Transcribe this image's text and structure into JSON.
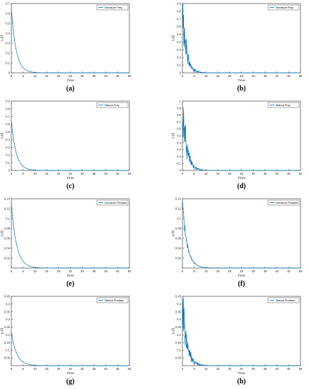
{
  "chart_data": [
    {
      "type": "line",
      "caption": "(a)",
      "xlabel": "Time",
      "ylabel": "x₁(t)",
      "xlim": [
        0,
        50
      ],
      "ylim": [
        0,
        0.7
      ],
      "xticks": [
        0,
        5,
        10,
        15,
        20,
        25,
        30,
        35,
        40,
        45,
        50
      ],
      "yticks": [
        0,
        0.1,
        0.2,
        0.3,
        0.4,
        0.5,
        0.6,
        0.7
      ],
      "ytick_labels": [
        "0",
        "0.1",
        "0.2",
        "0.3",
        "0.4",
        "0.5",
        "0.6",
        "0.7"
      ],
      "series": [
        {
          "name": "Immature Prey",
          "color": "#0072BD",
          "style": "decay",
          "y0": 0.65,
          "rate": 0.5
        }
      ]
    },
    {
      "type": "line",
      "caption": "(b)",
      "xlabel": "Time",
      "ylabel": "x₁(t)",
      "xlim": [
        0,
        50
      ],
      "ylim": [
        0,
        0.9
      ],
      "xticks": [
        0,
        5,
        10,
        15,
        20,
        25,
        30,
        35,
        40,
        45,
        50
      ],
      "yticks": [
        0,
        0.1,
        0.2,
        0.3,
        0.4,
        0.5,
        0.6,
        0.7,
        0.8,
        0.9
      ],
      "ytick_labels": [
        "0",
        "0.1",
        "0.2",
        "0.3",
        "0.4",
        "0.5",
        "0.6",
        "0.7",
        "0.8",
        "0.9"
      ],
      "series": [
        {
          "name": "Immature Prey",
          "color": "#0072BD",
          "style": "noisy",
          "y0": 0.8,
          "rate": 0.6
        }
      ]
    },
    {
      "type": "line",
      "caption": "(c)",
      "xlabel": "Time",
      "ylabel": "x₂(t)",
      "xlim": [
        0,
        50
      ],
      "ylim": [
        0,
        0.9
      ],
      "xticks": [
        0,
        5,
        10,
        15,
        20,
        25,
        30,
        35,
        40,
        45,
        50
      ],
      "yticks": [
        0,
        0.1,
        0.2,
        0.3,
        0.4,
        0.5,
        0.6,
        0.7,
        0.8,
        0.9
      ],
      "ytick_labels": [
        "0",
        "0.1",
        "0.2",
        "0.3",
        "0.4",
        "0.5",
        "0.6",
        "0.7",
        "0.8",
        "0.9"
      ],
      "series": [
        {
          "name": "Mature Prey",
          "color": "#0072BD",
          "style": "decay",
          "y0": 0.65,
          "rate": 0.5
        }
      ]
    },
    {
      "type": "line",
      "caption": "(d)",
      "xlabel": "Time",
      "ylabel": "x₂(t)",
      "xlim": [
        0,
        50
      ],
      "ylim": [
        0,
        1
      ],
      "xticks": [
        0,
        5,
        10,
        15,
        20,
        25,
        30,
        35,
        40,
        45,
        50
      ],
      "yticks": [
        0,
        0.1,
        0.2,
        0.3,
        0.4,
        0.5,
        0.6,
        0.7,
        0.8,
        0.9,
        1
      ],
      "ytick_labels": [
        "0",
        "0.1",
        "0.2",
        "0.3",
        "0.4",
        "0.5",
        "0.6",
        "0.7",
        "0.8",
        "0.9",
        "1"
      ],
      "series": [
        {
          "name": "Mature Prey",
          "color": "#0072BD",
          "style": "noisy",
          "y0": 0.85,
          "rate": 0.55
        }
      ]
    },
    {
      "type": "line",
      "caption": "(e)",
      "xlabel": "Time",
      "ylabel": "y₁(t)",
      "xlim": [
        0,
        50
      ],
      "ylim": [
        0,
        0.14
      ],
      "xticks": [
        0,
        5,
        10,
        15,
        20,
        25,
        30,
        35,
        40,
        45,
        50
      ],
      "yticks": [
        0.02,
        0.04,
        0.06,
        0.08,
        0.1,
        0.12,
        0.14
      ],
      "ytick_labels": [
        "0.02",
        "0.04",
        "0.06",
        "0.08",
        "0.1",
        "0.12",
        "0.14"
      ],
      "series": [
        {
          "name": "Immature Predator",
          "color": "#0072BD",
          "style": "decay",
          "y0": 0.13,
          "rate": 0.45
        }
      ]
    },
    {
      "type": "line",
      "caption": "(f)",
      "xlabel": "Time",
      "ylabel": "y₁(t)",
      "xlim": [
        0,
        50
      ],
      "ylim": [
        0,
        0.14
      ],
      "xticks": [
        0,
        5,
        10,
        15,
        20,
        25,
        30,
        35,
        40,
        45,
        50
      ],
      "yticks": [
        0.02,
        0.04,
        0.06,
        0.08,
        0.1,
        0.12,
        0.14
      ],
      "ytick_labels": [
        "0.02",
        "0.04",
        "0.06",
        "0.08",
        "0.1",
        "0.12",
        "0.14"
      ],
      "series": [
        {
          "name": "Immature Predator",
          "color": "#0072BD",
          "style": "noisy-smooth",
          "y0": 0.13,
          "rate": 0.5
        }
      ]
    },
    {
      "type": "line",
      "caption": "(g)",
      "xlabel": "Time",
      "ylabel": "y₂(t)",
      "xlim": [
        0,
        50
      ],
      "ylim": [
        0,
        0.45
      ],
      "xticks": [
        0,
        5,
        10,
        15,
        20,
        25,
        30,
        35,
        40,
        45,
        50
      ],
      "yticks": [
        0.05,
        0.1,
        0.15,
        0.2,
        0.25,
        0.3,
        0.35,
        0.4,
        0.45
      ],
      "ytick_labels": [
        "0.05",
        "0.1",
        "0.15",
        "0.2",
        "0.25",
        "0.3",
        "0.35",
        "0.4",
        "0.45"
      ],
      "series": [
        {
          "name": "Mature Predator",
          "color": "#0072BD",
          "style": "decay",
          "y0": 0.22,
          "rate": 0.45
        }
      ]
    },
    {
      "type": "line",
      "caption": "(h)",
      "xlabel": "Time",
      "ylabel": "y₂(t)",
      "xlim": [
        0,
        50
      ],
      "ylim": [
        0,
        0.45
      ],
      "xticks": [
        0,
        5,
        10,
        15,
        20,
        25,
        30,
        35,
        40,
        45,
        50
      ],
      "yticks": [
        0.05,
        0.1,
        0.15,
        0.2,
        0.25,
        0.3,
        0.35,
        0.4,
        0.45
      ],
      "ytick_labels": [
        "0.05",
        "0.1",
        "0.15",
        "0.2",
        "0.25",
        "0.3",
        "0.35",
        "0.4",
        "0.45"
      ],
      "series": [
        {
          "name": "Mature Predator",
          "color": "#0072BD",
          "style": "noisy",
          "y0": 0.42,
          "rate": 0.55
        }
      ]
    }
  ]
}
